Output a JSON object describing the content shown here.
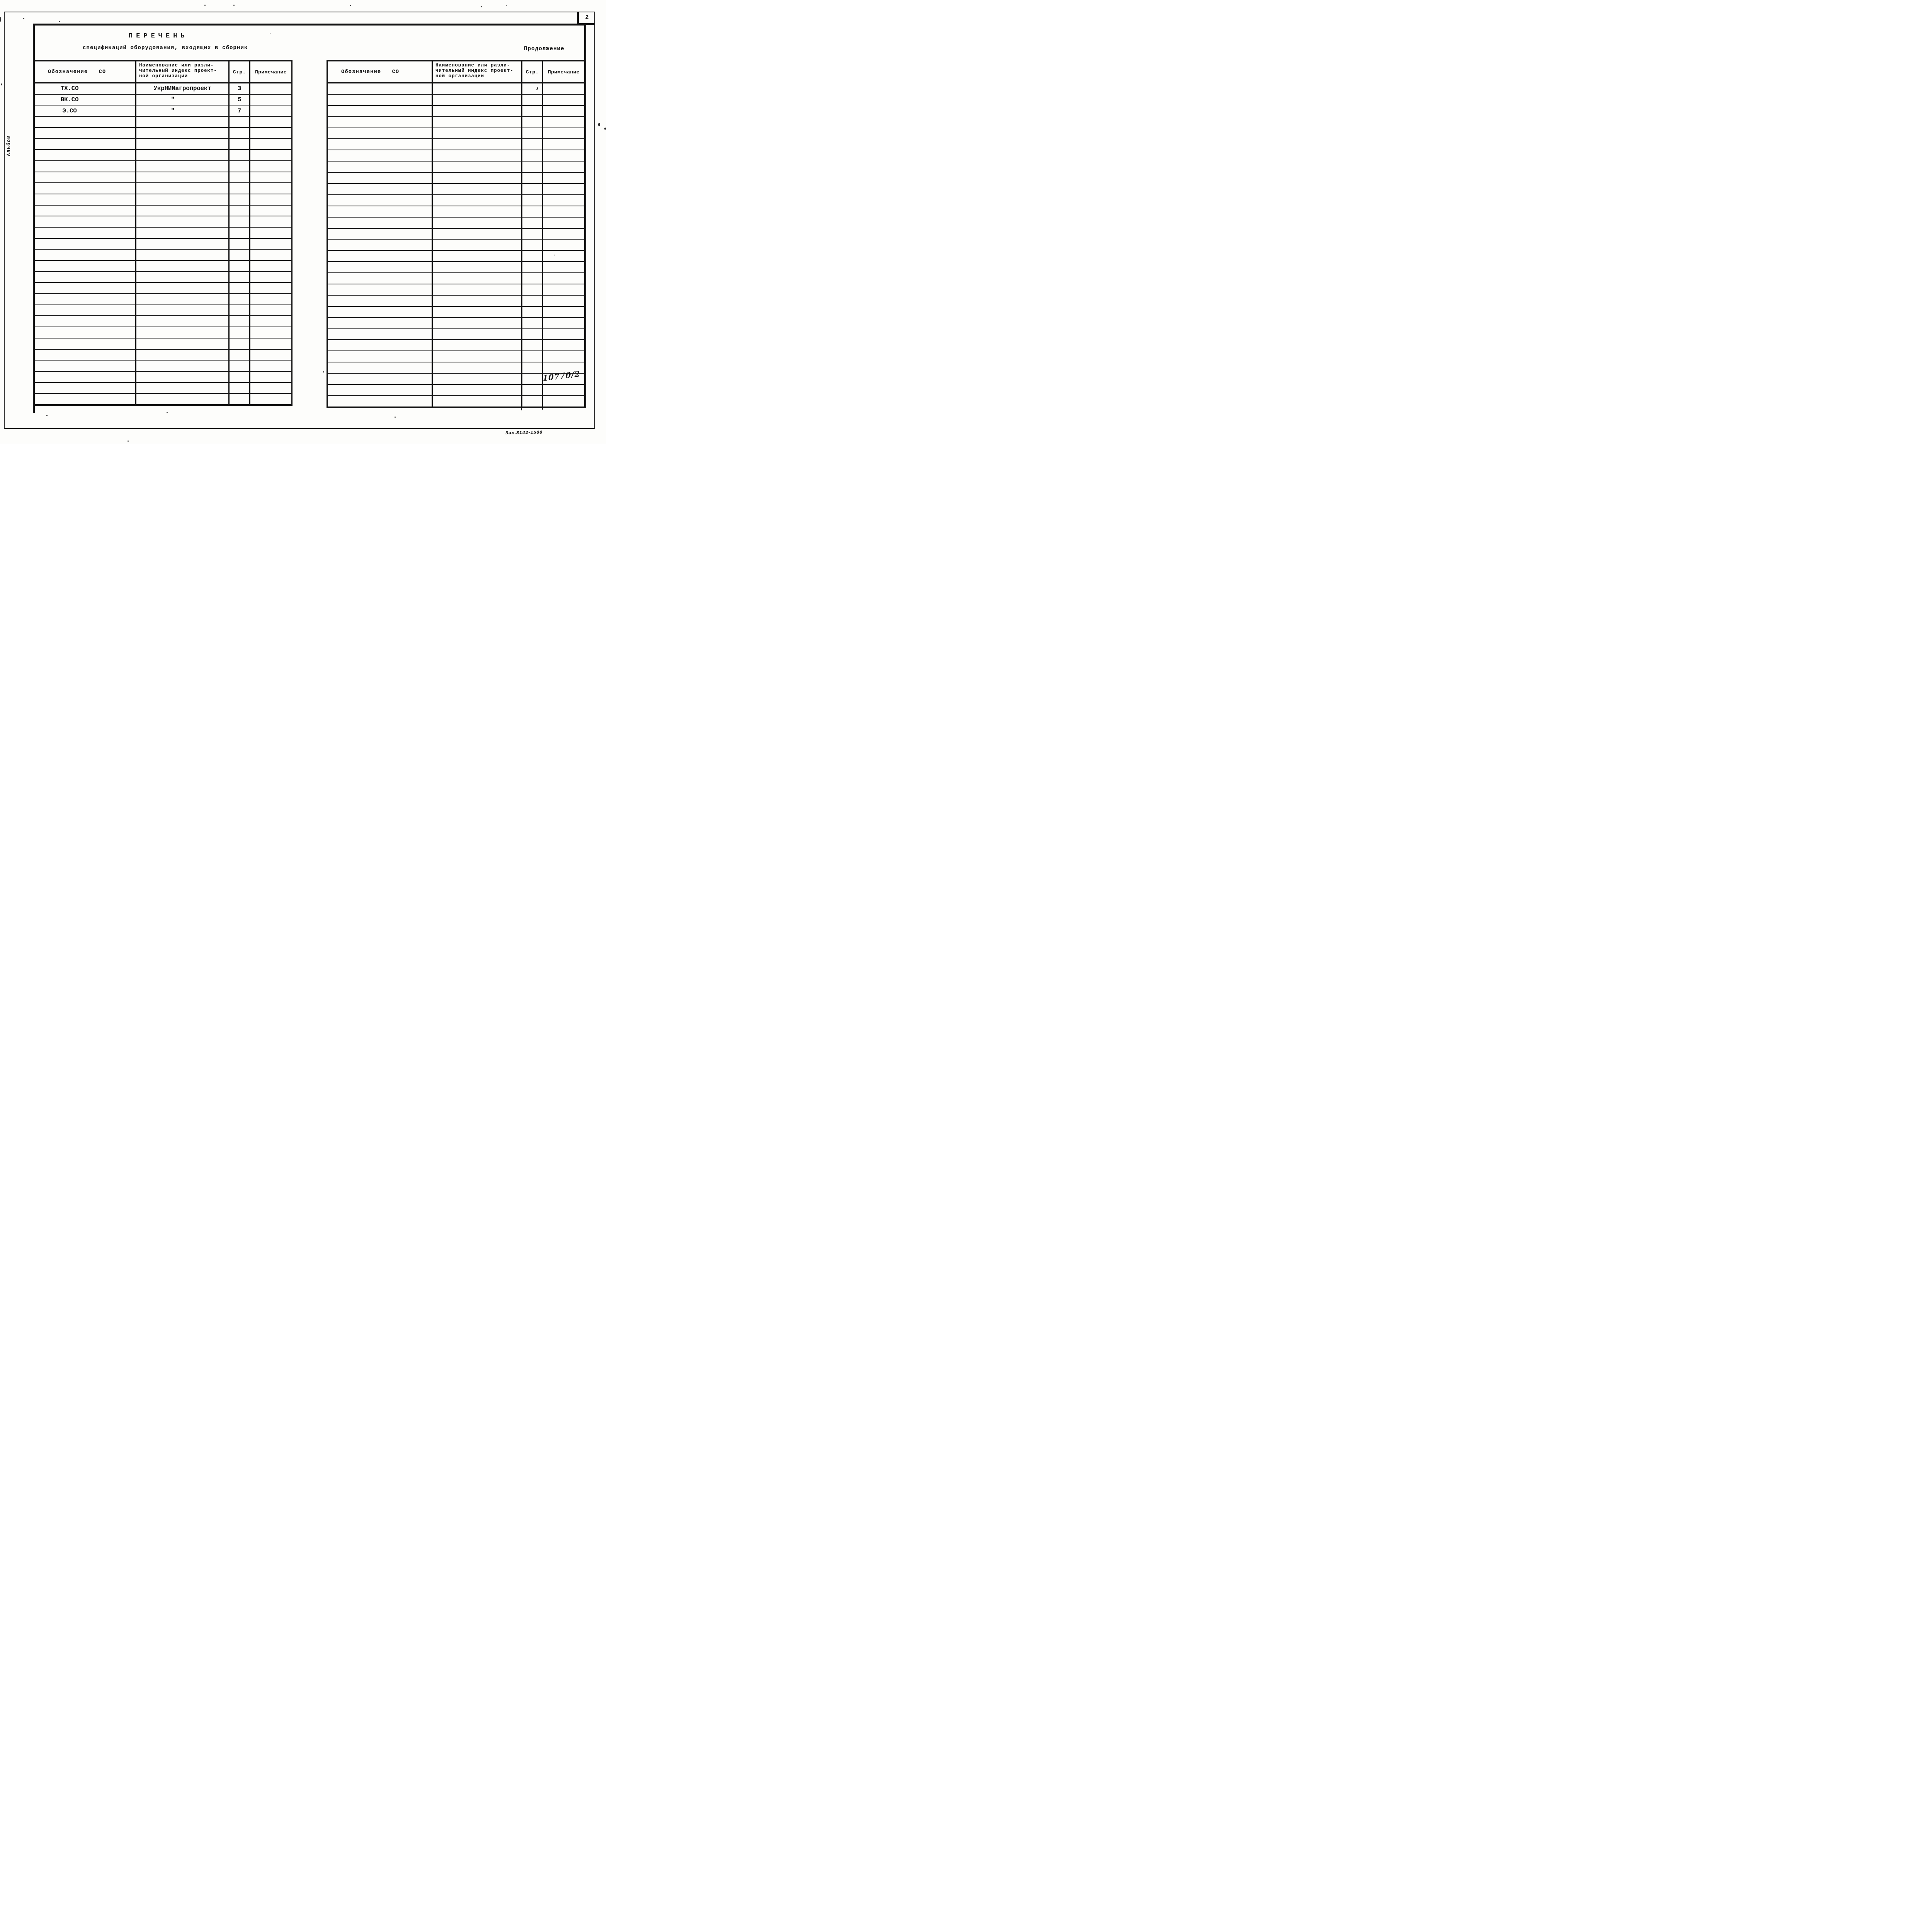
{
  "page": {
    "number": "2",
    "continuation": "Продолжение",
    "album_side_label": "Альбом",
    "doc_number": "10770/2",
    "print_note": "Зак.8142-1500"
  },
  "title": {
    "main": "ПЕРЕЧЕНЬ",
    "subtitle": "спецификаций оборудования, входящих в сборник"
  },
  "table_headers": {
    "designation": "Обозначение   СО",
    "name_lines": [
      "Наименование или разли-",
      "чительный индекс проект-",
      "ной организации"
    ],
    "page": "Стр.",
    "note": "Примечание"
  },
  "tables": {
    "left": {
      "row_count": 29,
      "rows": [
        {
          "designation": "ТХ.СО",
          "name": "УкрНИИагропроект",
          "page": "3",
          "note": ""
        },
        {
          "designation": "ВК.СО",
          "name": "\"",
          "page": "5",
          "note": ""
        },
        {
          "designation": "Э.СО",
          "name": "\"",
          "page": "7",
          "note": ""
        }
      ]
    },
    "right": {
      "row_count": 29,
      "rows": []
    }
  }
}
